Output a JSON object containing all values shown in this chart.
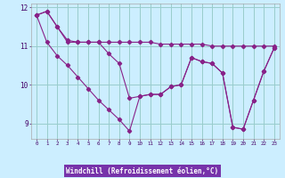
{
  "xlabel": "Windchill (Refroidissement éolien,°C)",
  "background_color": "#cceeff",
  "grid_color": "#99cccc",
  "line_color": "#882288",
  "label_bg": "#6633aa",
  "label_fg": "#ffffff",
  "x_hours": [
    0,
    1,
    2,
    3,
    4,
    5,
    6,
    7,
    8,
    9,
    10,
    11,
    12,
    13,
    14,
    15,
    16,
    17,
    18,
    19,
    20,
    21,
    22,
    23
  ],
  "line1": [
    11.8,
    11.9,
    11.5,
    11.15,
    11.1,
    11.1,
    11.1,
    11.1,
    11.1,
    11.1,
    11.1,
    11.1,
    11.05,
    11.05,
    11.05,
    11.05,
    11.05,
    11.0,
    11.0,
    11.0,
    11.0,
    11.0,
    11.0,
    11.0
  ],
  "line2": [
    11.8,
    11.9,
    11.5,
    11.1,
    11.1,
    11.1,
    11.1,
    10.8,
    10.55,
    9.65,
    9.7,
    9.75,
    9.75,
    9.95,
    10.0,
    10.7,
    10.6,
    10.55,
    10.3,
    8.9,
    8.85,
    9.6,
    10.35,
    10.95
  ],
  "line3": [
    11.8,
    11.1,
    10.75,
    10.5,
    10.2,
    9.9,
    9.6,
    9.35,
    9.1,
    8.8,
    9.7,
    9.75,
    9.75,
    9.95,
    10.0,
    10.7,
    10.6,
    10.55,
    10.3,
    8.9,
    8.85,
    9.6,
    10.35,
    10.95
  ],
  "ylim": [
    8.6,
    12.1
  ],
  "yticks": [
    9,
    10,
    11,
    12
  ],
  "figsize": [
    3.2,
    2.0
  ],
  "dpi": 100
}
